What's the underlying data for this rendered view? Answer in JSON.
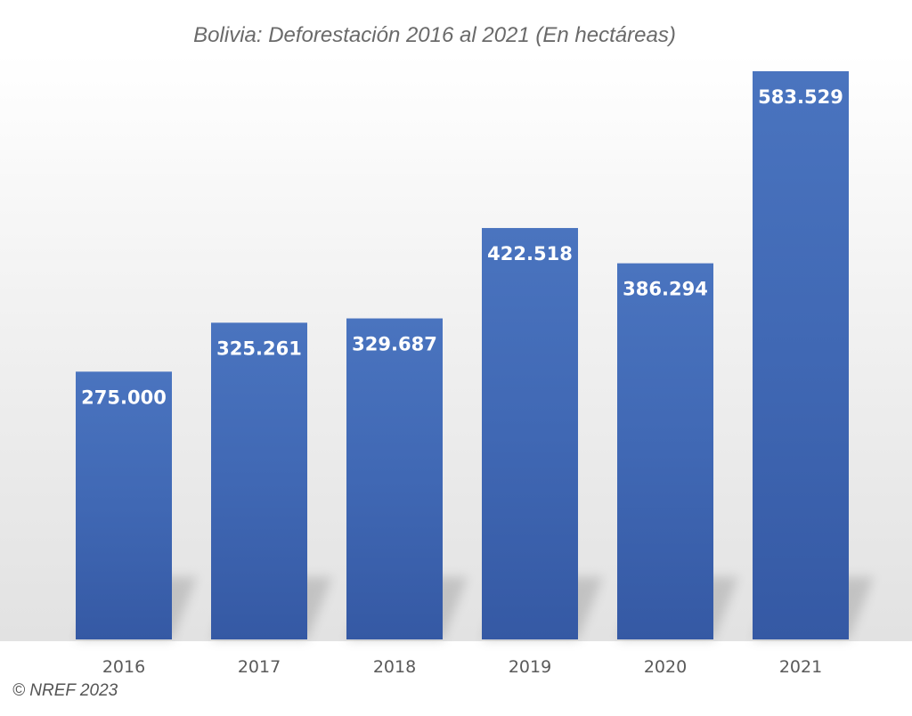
{
  "chart_data": {
    "type": "bar",
    "title": "Bolivia: Deforestación 2016 al 2021 (En hectáreas)",
    "categories": [
      "2016",
      "2017",
      "2018",
      "2019",
      "2020",
      "2021"
    ],
    "values": [
      275000,
      325261,
      329687,
      422518,
      386294,
      583529
    ],
    "value_labels": [
      "275.000",
      "325.261",
      "329.687",
      "422.518",
      "386.294",
      "583.529"
    ],
    "xlabel": "",
    "ylabel": "",
    "ylim": [
      0,
      583529
    ],
    "grid": false,
    "legend": "none",
    "bar_color": "#4472c4"
  },
  "footer": {
    "copyright": "© NREF 2023"
  }
}
